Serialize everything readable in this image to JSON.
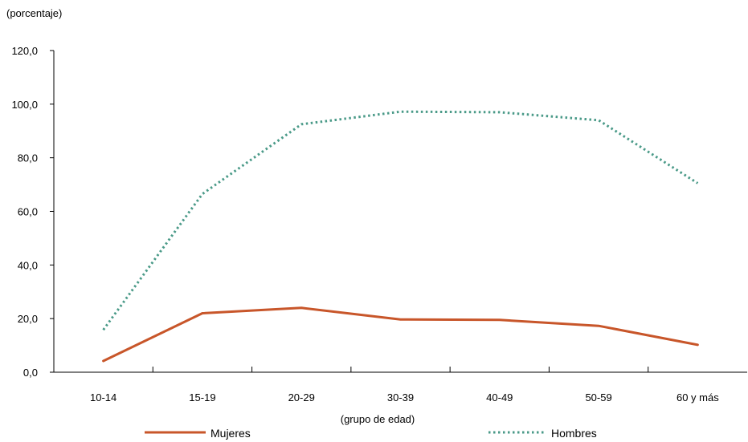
{
  "chart_data": {
    "type": "line",
    "ylabel": "(porcentaje)",
    "xlabel": "(grupo de edad)",
    "categories": [
      "10-14",
      "15-19",
      "20-29",
      "30-39",
      "40-49",
      "50-59",
      "60 y más"
    ],
    "ylim": [
      0,
      120
    ],
    "yticks": [
      "0,0",
      "20,0",
      "40,0",
      "60,0",
      "80,0",
      "100,0",
      "120,0"
    ],
    "yvalues": [
      0,
      20,
      40,
      60,
      80,
      100,
      120
    ],
    "grid": false,
    "legend_position": "bottom",
    "series": [
      {
        "name": "Mujeres",
        "values": [
          4.2,
          22.0,
          24.0,
          19.7,
          19.5,
          17.3,
          10.2
        ],
        "color": "#c8562a",
        "style": "solid"
      },
      {
        "name": "Hombres",
        "values": [
          15.8,
          66.5,
          92.5,
          97.2,
          97.0,
          94.0,
          70.5
        ],
        "color": "#4a9a88",
        "style": "dotted"
      }
    ]
  }
}
